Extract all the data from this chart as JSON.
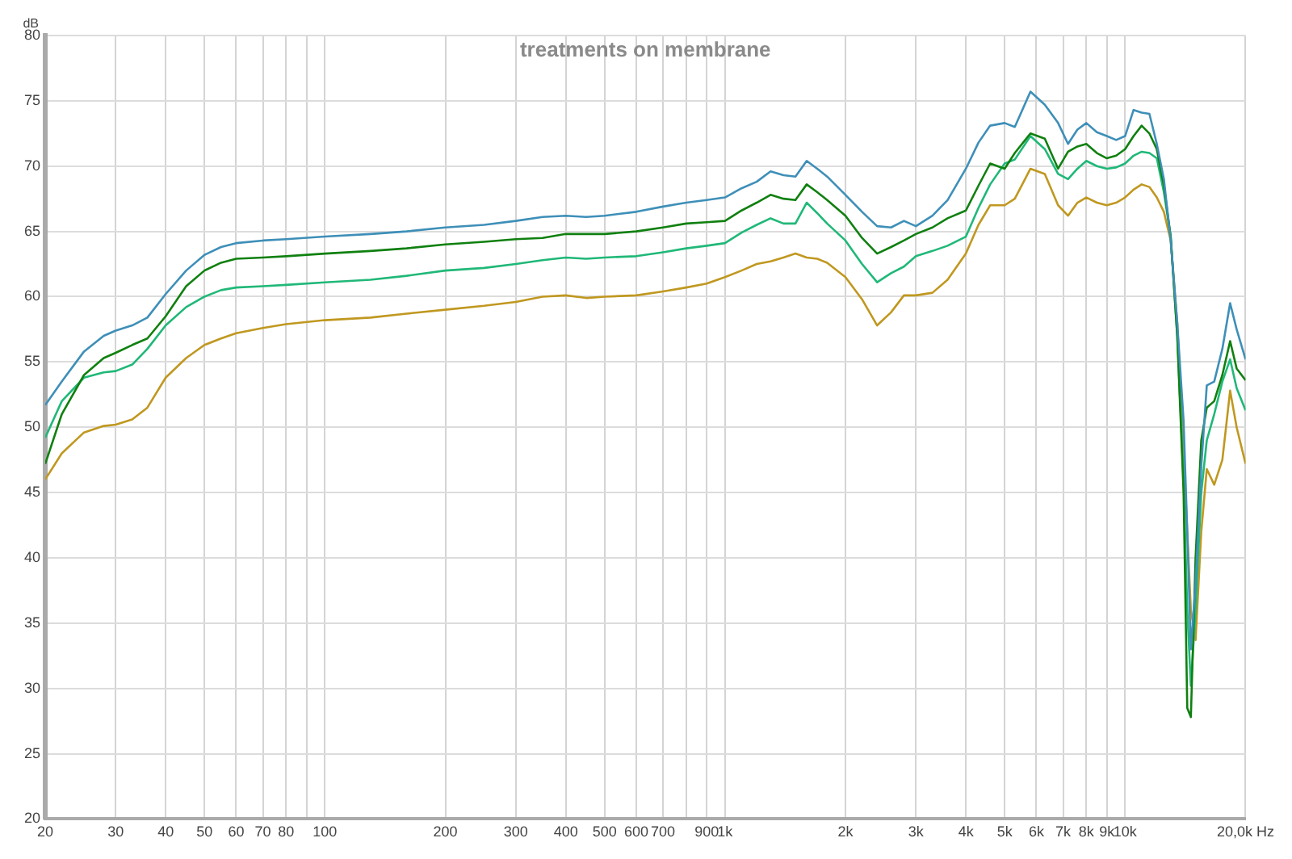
{
  "chart_data": {
    "type": "line",
    "title": "treatments on membrane",
    "ylabel": "dB",
    "x": [
      20,
      22,
      25,
      28,
      30,
      33,
      36,
      40,
      45,
      50,
      55,
      60,
      70,
      80,
      100,
      130,
      160,
      200,
      250,
      300,
      350,
      400,
      450,
      500,
      600,
      700,
      800,
      900,
      1000,
      1100,
      1200,
      1300,
      1400,
      1500,
      1600,
      1700,
      1800,
      2000,
      2200,
      2400,
      2600,
      2800,
      3000,
      3300,
      3600,
      4000,
      4300,
      4600,
      5000,
      5300,
      5800,
      6300,
      6800,
      7200,
      7600,
      8000,
      8500,
      9000,
      9500,
      10000,
      10500,
      11000,
      11500,
      12000,
      12500,
      13000,
      13500,
      14000,
      14300,
      14600,
      15000,
      15500,
      16000,
      16700,
      17500,
      18300,
      19000,
      20000
    ],
    "series": [
      {
        "color": "#3e8fb8",
        "values": [
          51.7,
          53.5,
          55.8,
          57.0,
          57.4,
          57.8,
          58.4,
          60.2,
          62.0,
          63.2,
          63.8,
          64.1,
          64.3,
          64.4,
          64.6,
          64.8,
          65.0,
          65.3,
          65.5,
          65.8,
          66.1,
          66.2,
          66.1,
          66.2,
          66.5,
          66.9,
          67.2,
          67.4,
          67.6,
          68.3,
          68.8,
          69.6,
          69.3,
          69.2,
          70.4,
          69.8,
          69.2,
          67.8,
          66.5,
          65.4,
          65.3,
          65.8,
          65.4,
          66.2,
          67.4,
          69.8,
          71.8,
          73.1,
          73.3,
          73.0,
          75.7,
          74.7,
          73.3,
          71.7,
          72.8,
          73.3,
          72.6,
          72.3,
          72.0,
          72.3,
          74.3,
          74.1,
          74.0,
          71.7,
          69.0,
          64.3,
          58,
          50.5,
          42,
          33,
          38,
          47,
          53.2,
          53.5,
          56,
          59.5,
          57.5,
          55.2
        ]
      },
      {
        "color": "#108010",
        "values": [
          47.2,
          51.0,
          54.0,
          55.3,
          55.7,
          56.3,
          56.8,
          58.5,
          60.8,
          62.0,
          62.6,
          62.9,
          63.0,
          63.1,
          63.3,
          63.5,
          63.7,
          64.0,
          64.2,
          64.4,
          64.5,
          64.8,
          64.8,
          64.8,
          65.0,
          65.3,
          65.6,
          65.7,
          65.8,
          66.6,
          67.2,
          67.8,
          67.5,
          67.4,
          68.6,
          68.0,
          67.4,
          66.2,
          64.5,
          63.3,
          63.8,
          64.3,
          64.8,
          65.3,
          66.0,
          66.6,
          68.5,
          70.2,
          69.8,
          71.0,
          72.5,
          72.1,
          69.8,
          71.1,
          71.5,
          71.7,
          71.0,
          70.6,
          70.8,
          71.3,
          72.3,
          73.1,
          72.5,
          71.3,
          68.5,
          64.6,
          57,
          45,
          28.5,
          27.8,
          40,
          49,
          51.5,
          52.0,
          54,
          56.6,
          54.5,
          53.6
        ]
      },
      {
        "color": "#20b878",
        "values": [
          49.2,
          52.0,
          53.8,
          54.2,
          54.3,
          54.8,
          56.0,
          57.8,
          59.2,
          60.0,
          60.5,
          60.7,
          60.8,
          60.9,
          61.1,
          61.3,
          61.6,
          62.0,
          62.2,
          62.5,
          62.8,
          63.0,
          62.9,
          63.0,
          63.1,
          63.4,
          63.7,
          63.9,
          64.1,
          64.9,
          65.5,
          66.0,
          65.6,
          65.6,
          67.2,
          66.4,
          65.6,
          64.3,
          62.5,
          61.1,
          61.8,
          62.3,
          63.1,
          63.5,
          63.9,
          64.6,
          66.8,
          68.6,
          70.2,
          70.5,
          72.3,
          71.3,
          69.4,
          69.0,
          69.8,
          70.4,
          70.0,
          69.8,
          69.9,
          70.2,
          70.8,
          71.1,
          71.0,
          70.6,
          68.0,
          64.6,
          57,
          46,
          36,
          30.2,
          36,
          45,
          49,
          51,
          53.5,
          55.2,
          53,
          51.3
        ]
      },
      {
        "color": "#c09820",
        "values": [
          46.0,
          48.0,
          49.6,
          50.1,
          50.2,
          50.6,
          51.5,
          53.8,
          55.3,
          56.3,
          56.8,
          57.2,
          57.6,
          57.9,
          58.2,
          58.4,
          58.7,
          59.0,
          59.3,
          59.6,
          60.0,
          60.1,
          59.9,
          60.0,
          60.1,
          60.4,
          60.7,
          61.0,
          61.5,
          62.0,
          62.5,
          62.7,
          63.0,
          63.3,
          63.0,
          62.9,
          62.6,
          61.5,
          59.8,
          57.8,
          58.8,
          60.1,
          60.1,
          60.3,
          61.3,
          63.3,
          65.5,
          67.0,
          67.0,
          67.5,
          69.8,
          69.4,
          67.0,
          66.2,
          67.2,
          67.6,
          67.2,
          67.0,
          67.2,
          67.6,
          68.2,
          68.6,
          68.4,
          67.6,
          66.5,
          64.3,
          58,
          48,
          42,
          36,
          33.7,
          42,
          46.8,
          45.6,
          47.5,
          52.8,
          50,
          47.2
        ]
      }
    ],
    "xlim": [
      20,
      20000
    ],
    "xticks": [
      20,
      30,
      40,
      50,
      60,
      70,
      80,
      {
        "value": 90,
        "label": null
      },
      100,
      200,
      300,
      400,
      500,
      600,
      700,
      {
        "value": 800,
        "label": null
      },
      900,
      {
        "value": 1000,
        "label": "1k"
      },
      {
        "value": 2000,
        "label": "2k"
      },
      {
        "value": 3000,
        "label": "3k"
      },
      {
        "value": 4000,
        "label": "4k"
      },
      {
        "value": 5000,
        "label": "5k"
      },
      {
        "value": 6000,
        "label": "6k"
      },
      {
        "value": 7000,
        "label": "7k"
      },
      {
        "value": 8000,
        "label": "8k"
      },
      {
        "value": 9000,
        "label": "9k"
      },
      {
        "value": 10000,
        "label": "10k"
      },
      {
        "value": 20000,
        "label": "20,0k Hz"
      }
    ],
    "ylim": [
      20,
      80
    ],
    "yticks": [
      20,
      25,
      30,
      35,
      40,
      45,
      50,
      55,
      60,
      65,
      70,
      75,
      80
    ],
    "log": "x",
    "grid": true,
    "legend": false,
    "marker": "none"
  }
}
